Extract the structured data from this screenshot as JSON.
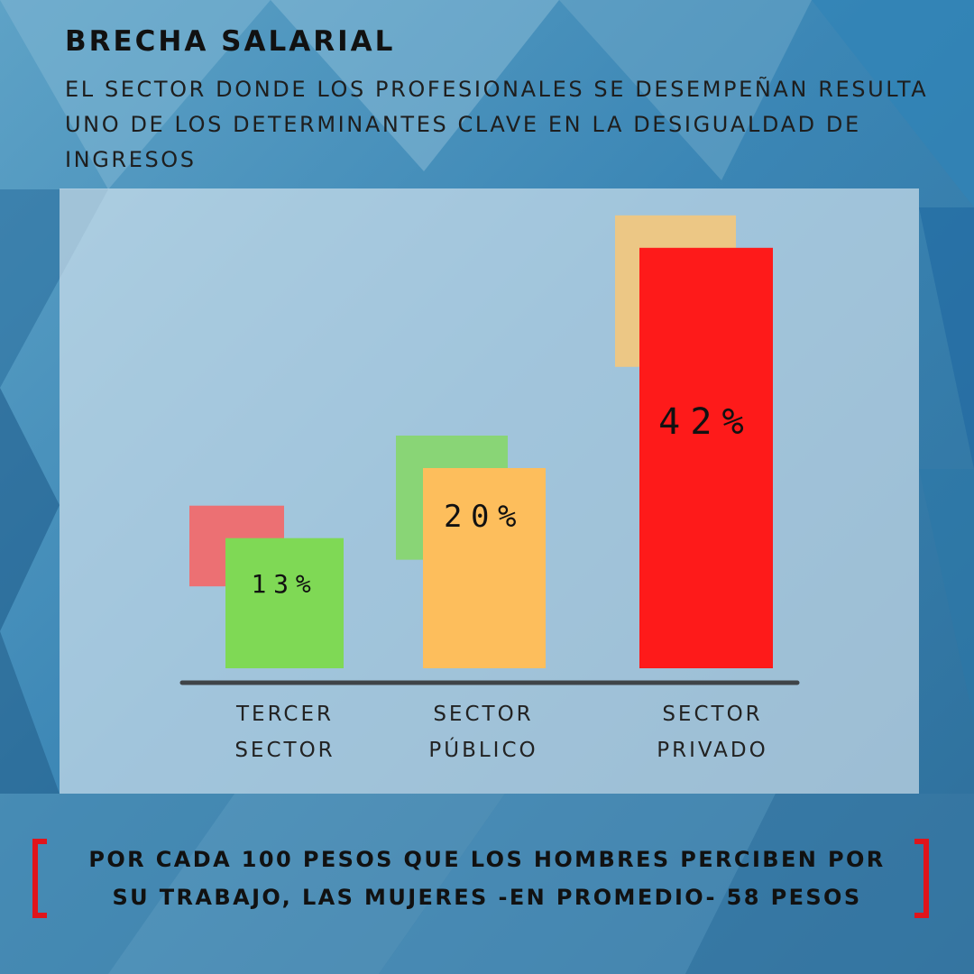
{
  "title": "BRECHA SALARIAL",
  "subtitle": "EL SECTOR DONDE LOS PROFESIONALES SE DESEMPEÑAN RESULTA UNO DE LOS DETERMINANTES CLAVE EN LA DESIGUALDAD DE INGRESOS",
  "callout": {
    "line1": "POR CADA 100 PESOS QUE LOS HOMBRES PERCIBEN POR",
    "line2": "SU TRABAJO, LAS MUJERES -EN PROMEDIO- 58 PESOS"
  },
  "colors": {
    "accent_red": "#e0141b",
    "bar_green": "#7fd955",
    "bar_orange": "#fdbe5c",
    "bar_red": "#fe1a1a",
    "shadow_red": "#ec7073",
    "shadow_green": "#89d576",
    "shadow_orange": "#ecc785"
  },
  "chart_data": {
    "type": "bar",
    "title": "",
    "xlabel": "",
    "ylabel": "",
    "ylim": [
      0,
      50
    ],
    "categories": [
      {
        "line1": "TERCER",
        "line2": "SECTOR"
      },
      {
        "line1": "SECTOR",
        "line2": "PÚBLICO"
      },
      {
        "line1": "SECTOR",
        "line2": "PRIVADO"
      }
    ],
    "values": [
      13,
      20,
      42
    ],
    "value_labels": [
      "13%",
      "20%",
      "42%"
    ],
    "units": "%"
  }
}
